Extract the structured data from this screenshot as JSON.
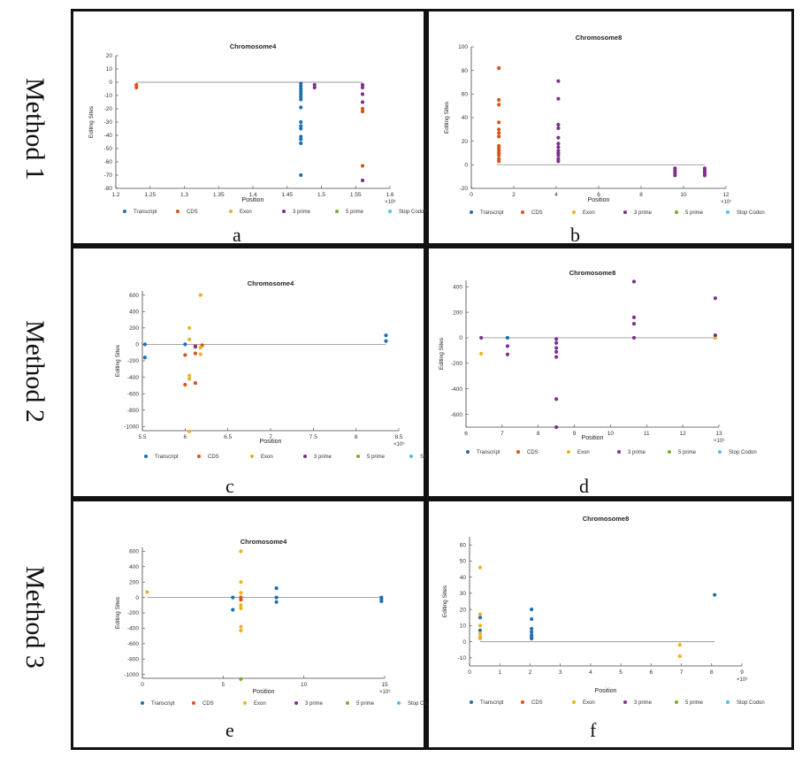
{
  "row_labels": [
    "Method 1",
    "Method 2",
    "Method 3"
  ],
  "legend": {
    "entries": [
      "Transcript",
      "CDS",
      "Exon",
      "3 prime",
      "5 prime",
      "Stop Codon"
    ],
    "colors": [
      "#1f6fb0",
      "#d95319",
      "#edb120",
      "#7e2f8e",
      "#77ac30",
      "#4dbeee"
    ]
  },
  "chart_data": [
    {
      "panel": "a",
      "type": "scatter",
      "title": "Chromosome4",
      "xlabel": "Position",
      "ylabel": "Editing Sites",
      "xlim": [
        1.2,
        1.6
      ],
      "ylim": [
        -80,
        20
      ],
      "xticks": [
        1.2,
        1.25,
        1.3,
        1.35,
        1.4,
        1.45,
        1.5,
        1.55,
        1.6
      ],
      "xtick_labels": [
        "1.2",
        "1.25",
        "1.3",
        "1.35",
        "1.4",
        "1.45",
        "1.5",
        "1.55",
        "1.6"
      ],
      "yticks": [
        20,
        10,
        0,
        -10,
        -20,
        -30,
        -40,
        -50,
        -60,
        -70,
        -80
      ],
      "ytick_labels": [
        "20",
        "10",
        "0",
        "-10",
        "-20",
        "-30",
        "-40",
        "-50",
        "-60",
        "-70",
        "-80"
      ],
      "exponent": "×10⁸",
      "baseline": [
        1.23,
        1.56
      ],
      "series": [
        {
          "name": "Transcript",
          "points": [
            [
              1.47,
              -1
            ],
            [
              1.47,
              -3
            ],
            [
              1.47,
              -5
            ],
            [
              1.47,
              -7
            ],
            [
              1.47,
              -9
            ],
            [
              1.47,
              -11
            ],
            [
              1.47,
              -13
            ],
            [
              1.47,
              -19
            ],
            [
              1.47,
              -30
            ],
            [
              1.47,
              -33
            ],
            [
              1.47,
              -35
            ],
            [
              1.47,
              -41
            ],
            [
              1.47,
              -43
            ],
            [
              1.47,
              -46
            ],
            [
              1.47,
              -70
            ]
          ]
        },
        {
          "name": "CDS",
          "points": [
            [
              1.23,
              -2
            ],
            [
              1.23,
              -4
            ],
            [
              1.56,
              -20
            ],
            [
              1.56,
              -22
            ],
            [
              1.56,
              -63
            ]
          ]
        },
        {
          "name": "Exon",
          "points": []
        },
        {
          "name": "3 prime",
          "points": [
            [
              1.49,
              -2
            ],
            [
              1.49,
              -4
            ],
            [
              1.56,
              -2
            ],
            [
              1.56,
              -4
            ],
            [
              1.56,
              -9
            ],
            [
              1.56,
              -15
            ],
            [
              1.56,
              -74
            ]
          ]
        },
        {
          "name": "5 prime",
          "points": []
        },
        {
          "name": "Stop Codon",
          "points": []
        }
      ]
    },
    {
      "panel": "b",
      "type": "scatter",
      "title": "Chromosome8",
      "xlabel": "Position",
      "ylabel": "Editing Sites",
      "xlim": [
        0,
        12
      ],
      "ylim": [
        -20,
        100
      ],
      "xticks": [
        0,
        2,
        4,
        6,
        8,
        10,
        12
      ],
      "xtick_labels": [
        "0",
        "2",
        "4",
        "6",
        "8",
        "10",
        "12"
      ],
      "yticks": [
        100,
        80,
        60,
        40,
        20,
        0,
        -20
      ],
      "ytick_labels": [
        "100",
        "80",
        "60",
        "40",
        "20",
        "0",
        "-20"
      ],
      "exponent": "×10⁷",
      "baseline": [
        1.2,
        11
      ],
      "series": [
        {
          "name": "Transcript",
          "points": []
        },
        {
          "name": "CDS",
          "points": [
            [
              1.3,
              3
            ],
            [
              1.3,
              5
            ],
            [
              1.3,
              8
            ],
            [
              1.3,
              10
            ],
            [
              1.3,
              12
            ],
            [
              1.3,
              14
            ],
            [
              1.3,
              16
            ],
            [
              1.3,
              24
            ],
            [
              1.3,
              27
            ],
            [
              1.3,
              30
            ],
            [
              1.3,
              36
            ],
            [
              1.3,
              51
            ],
            [
              1.3,
              55
            ],
            [
              1.3,
              82
            ]
          ]
        },
        {
          "name": "Exon",
          "points": []
        },
        {
          "name": "3 prime",
          "points": [
            [
              4.1,
              3
            ],
            [
              4.1,
              5
            ],
            [
              4.1,
              8
            ],
            [
              4.1,
              10
            ],
            [
              4.1,
              12
            ],
            [
              4.1,
              15
            ],
            [
              4.1,
              18
            ],
            [
              4.1,
              23
            ],
            [
              4.1,
              31
            ],
            [
              4.1,
              34
            ],
            [
              4.1,
              56
            ],
            [
              4.1,
              71
            ],
            [
              9.6,
              -3
            ],
            [
              9.6,
              -5
            ],
            [
              9.6,
              -7
            ],
            [
              9.6,
              -9
            ],
            [
              11,
              -3
            ],
            [
              11,
              -5
            ],
            [
              11,
              -7
            ],
            [
              11,
              -9
            ]
          ]
        },
        {
          "name": "5 prime",
          "points": []
        },
        {
          "name": "Stop Codon",
          "points": []
        }
      ]
    },
    {
      "panel": "c",
      "type": "scatter",
      "title": "Chromosome4",
      "xlabel": "Position",
      "ylabel": "Editing Sites",
      "xlim": [
        5.5,
        8.5
      ],
      "ylim": [
        -1050,
        650
      ],
      "xticks": [
        5.5,
        6,
        6.5,
        7,
        7.5,
        8,
        8.5
      ],
      "xtick_labels": [
        "5.5",
        "6",
        "6.5",
        "7",
        "7.5",
        "8",
        "8.5"
      ],
      "yticks": [
        600,
        400,
        200,
        0,
        -200,
        -400,
        -600,
        -800,
        -1000
      ],
      "ytick_labels": [
        "600",
        "400",
        "200",
        "0",
        "-200",
        "-400",
        "-600",
        "-800",
        "-1000"
      ],
      "exponent": "×10⁵",
      "baseline": [
        5.53,
        8.35
      ],
      "series": [
        {
          "name": "Transcript",
          "points": [
            [
              5.53,
              0
            ],
            [
              5.53,
              -160
            ],
            [
              6.0,
              0
            ],
            [
              8.35,
              110
            ],
            [
              8.35,
              40
            ]
          ]
        },
        {
          "name": "CDS",
          "points": [
            [
              6.0,
              -130
            ],
            [
              6.0,
              -490
            ],
            [
              6.12,
              -20
            ],
            [
              6.12,
              -110
            ],
            [
              6.12,
              -470
            ],
            [
              6.2,
              -10
            ]
          ]
        },
        {
          "name": "Exon",
          "points": [
            [
              6.05,
              200
            ],
            [
              6.05,
              60
            ],
            [
              6.05,
              -380
            ],
            [
              6.05,
              -420
            ],
            [
              6.18,
              600
            ],
            [
              6.18,
              -40
            ],
            [
              6.18,
              -120
            ],
            [
              6.05,
              -1060
            ]
          ]
        },
        {
          "name": "3 prime",
          "points": [
            [
              6.12,
              -30
            ]
          ]
        },
        {
          "name": "5 prime",
          "points": []
        },
        {
          "name": "Stop Codon",
          "points": []
        }
      ]
    },
    {
      "panel": "d",
      "type": "scatter",
      "title": "Chromosome8",
      "xlabel": "Position",
      "ylabel": "Editing Sites",
      "xlim": [
        6,
        13
      ],
      "ylim": [
        -700,
        450
      ],
      "xticks": [
        6,
        7,
        8,
        9,
        10,
        11,
        12,
        13
      ],
      "xtick_labels": [
        "6",
        "7",
        "8",
        "9",
        "10",
        "11",
        "12",
        "13"
      ],
      "yticks": [
        400,
        200,
        0,
        -200,
        -400,
        -600
      ],
      "ytick_labels": [
        "400",
        "200",
        "0",
        "-200",
        "-400",
        "-600"
      ],
      "exponent": "×10⁵",
      "baseline": [
        6.4,
        12.9
      ],
      "series": [
        {
          "name": "Transcript",
          "points": [
            [
              7.15,
              0
            ]
          ]
        },
        {
          "name": "CDS",
          "points": []
        },
        {
          "name": "Exon",
          "points": [
            [
              6.42,
              -125
            ],
            [
              12.9,
              0
            ]
          ]
        },
        {
          "name": "3 prime",
          "points": [
            [
              6.42,
              0
            ],
            [
              7.15,
              -65
            ],
            [
              7.15,
              -130
            ],
            [
              8.5,
              -10
            ],
            [
              8.5,
              -40
            ],
            [
              8.5,
              -80
            ],
            [
              8.5,
              -110
            ],
            [
              8.5,
              -150
            ],
            [
              8.5,
              -480
            ],
            [
              8.5,
              -700
            ],
            [
              10.65,
              440
            ],
            [
              10.65,
              160
            ],
            [
              10.65,
              110
            ],
            [
              10.65,
              0
            ],
            [
              12.9,
              310
            ],
            [
              12.9,
              20
            ]
          ]
        },
        {
          "name": "5 prime",
          "points": []
        },
        {
          "name": "Stop Codon",
          "points": []
        }
      ]
    },
    {
      "panel": "e",
      "type": "scatter",
      "title": "Chromosome4",
      "xlabel": "Position",
      "ylabel": "Editing Sites",
      "xlim": [
        0,
        15
      ],
      "ylim": [
        -1050,
        650
      ],
      "xticks": [
        0,
        5,
        10,
        15
      ],
      "xtick_labels": [
        "0",
        "5",
        "10",
        "15"
      ],
      "yticks": [
        600,
        400,
        200,
        0,
        -200,
        -400,
        -600,
        -800,
        -1000
      ],
      "ytick_labels": [
        "600",
        "400",
        "200",
        "0",
        "-200",
        "-400",
        "-600",
        "-800",
        "-1000"
      ],
      "exponent": "×10⁵",
      "baseline": [
        0.3,
        14.8
      ],
      "series": [
        {
          "name": "Transcript",
          "points": [
            [
              5.6,
              0
            ],
            [
              5.6,
              -160
            ],
            [
              8.3,
              120
            ],
            [
              8.3,
              0
            ],
            [
              8.3,
              -60
            ],
            [
              14.8,
              0
            ],
            [
              14.8,
              -20
            ],
            [
              14.8,
              -50
            ]
          ]
        },
        {
          "name": "CDS",
          "points": [
            [
              6.1,
              0
            ],
            [
              6.1,
              -30
            ]
          ]
        },
        {
          "name": "Exon",
          "points": [
            [
              0.3,
              70
            ],
            [
              6.1,
              600
            ],
            [
              6.1,
              200
            ],
            [
              6.1,
              60
            ],
            [
              6.1,
              -100
            ],
            [
              6.1,
              -140
            ],
            [
              6.1,
              -380
            ],
            [
              6.1,
              -430
            ]
          ]
        },
        {
          "name": "3 prime",
          "points": []
        },
        {
          "name": "5 prime",
          "points": [
            [
              6.1,
              -1060
            ]
          ]
        },
        {
          "name": "Stop Codon",
          "points": []
        }
      ]
    },
    {
      "panel": "f",
      "type": "scatter",
      "title": "Chromosome8",
      "xlabel": "Position",
      "ylabel": "Editing Sites",
      "xlim": [
        0,
        9
      ],
      "ylim": [
        -15,
        65
      ],
      "xticks": [
        0,
        1,
        2,
        3,
        4,
        5,
        6,
        7,
        8,
        9
      ],
      "xtick_labels": [
        "0",
        "1",
        "2",
        "3",
        "4",
        "5",
        "6",
        "7",
        "8",
        "9"
      ],
      "yticks": [
        60,
        50,
        40,
        30,
        20,
        10,
        0,
        -10
      ],
      "ytick_labels": [
        "60",
        "50",
        "40",
        "30",
        "20",
        "10",
        "0",
        "-10"
      ],
      "exponent": "×10⁵",
      "baseline": [
        0.35,
        8.1
      ],
      "series": [
        {
          "name": "Transcript",
          "points": [
            [
              0.35,
              15
            ],
            [
              0.35,
              7
            ],
            [
              2.05,
              20
            ],
            [
              2.05,
              14
            ],
            [
              2.05,
              8
            ],
            [
              2.05,
              6
            ],
            [
              2.05,
              4
            ],
            [
              2.05,
              3
            ],
            [
              2.05,
              2
            ],
            [
              8.1,
              29
            ]
          ]
        },
        {
          "name": "CDS",
          "points": []
        },
        {
          "name": "Exon",
          "points": [
            [
              0.35,
              46
            ],
            [
              0.35,
              17
            ],
            [
              0.35,
              10
            ],
            [
              0.35,
              5
            ],
            [
              0.35,
              3
            ],
            [
              0.35,
              2
            ],
            [
              6.95,
              -2
            ],
            [
              6.95,
              -9
            ]
          ]
        },
        {
          "name": "3 prime",
          "points": []
        },
        {
          "name": "5 prime",
          "points": []
        },
        {
          "name": "Stop Codon",
          "points": []
        }
      ]
    }
  ]
}
